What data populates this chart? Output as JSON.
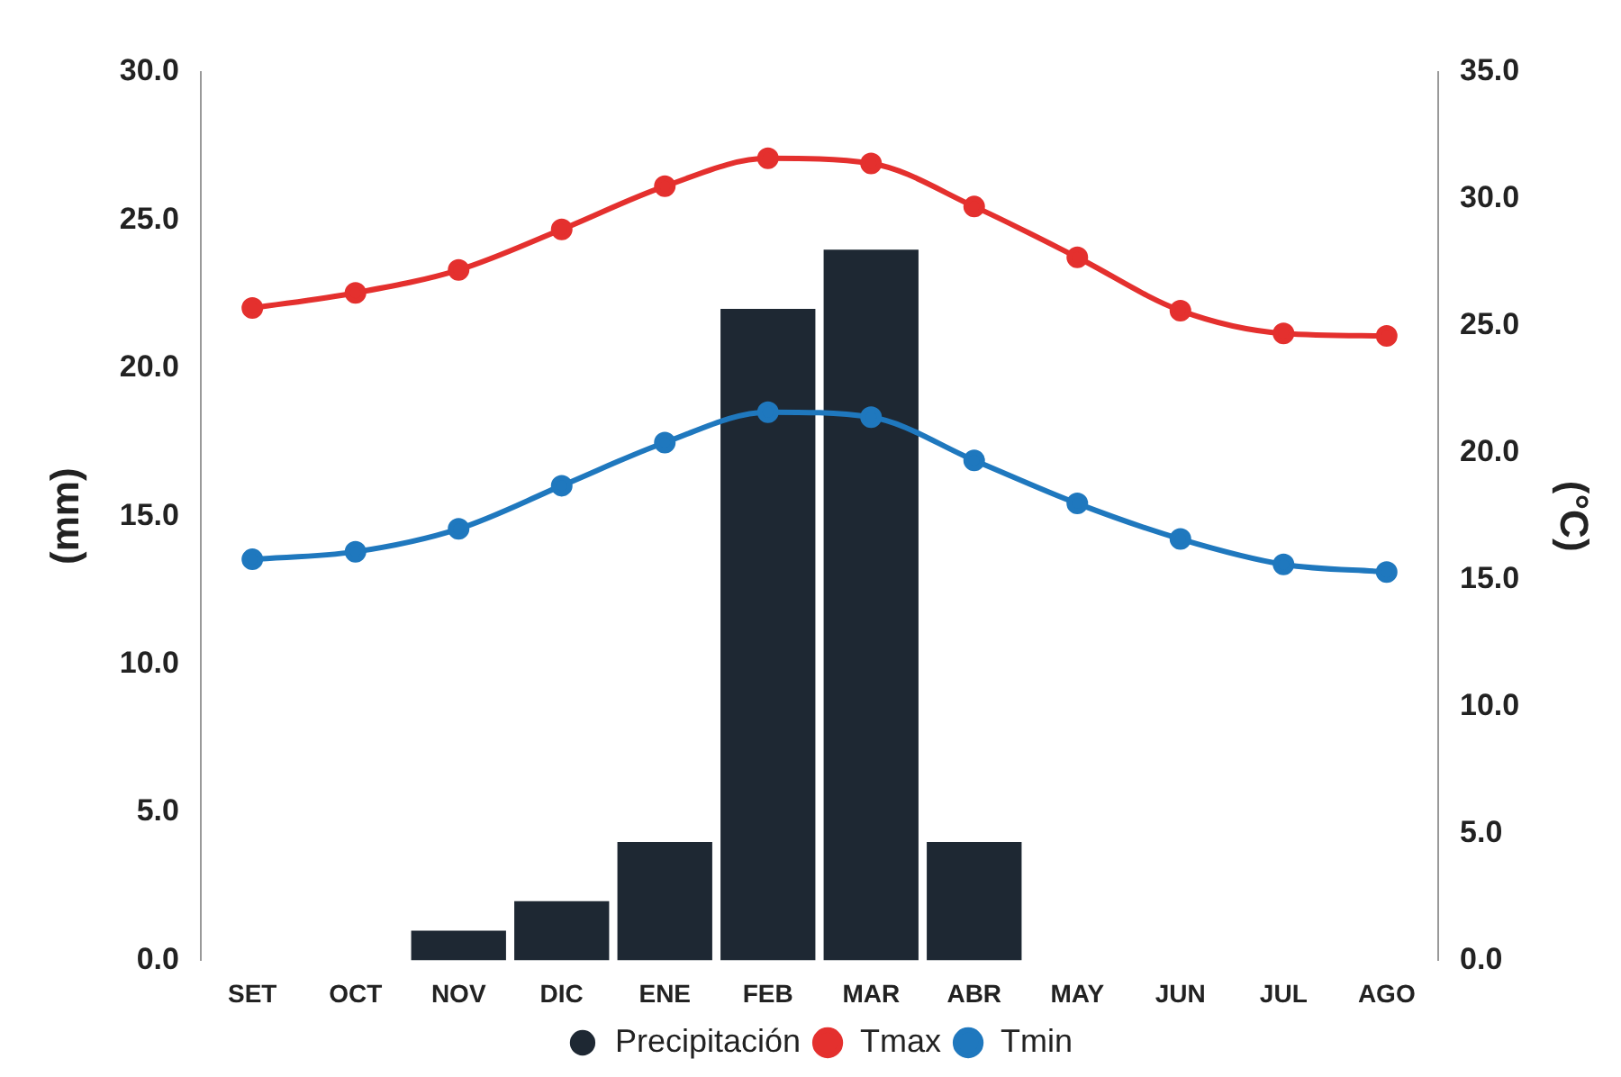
{
  "chart_data": {
    "type": "bar",
    "ylabel": "(mm)",
    "y2label": "(°C)",
    "categories": [
      "SET",
      "OCT",
      "NOV",
      "DIC",
      "ENE",
      "FEB",
      "MAR",
      "ABR",
      "MAY",
      "JUN",
      "JUL",
      "AGO"
    ],
    "series": [
      {
        "name": "Precipitación",
        "color": "#1e2833",
        "values": [
          0,
          0,
          1,
          2,
          4,
          22,
          24,
          4,
          0,
          0,
          0,
          0
        ]
      },
      {
        "name": "Tmax",
        "type": "line",
        "axis": "y2",
        "color": "#e4302e",
        "values": [
          25.7,
          26.3,
          27.2,
          28.8,
          30.5,
          31.6,
          31.4,
          29.7,
          27.7,
          25.6,
          24.7,
          24.6
        ]
      },
      {
        "name": "Tmin",
        "type": "line",
        "axis": "y2",
        "color": "#1f78be",
        "values": [
          15.8,
          16.1,
          17.0,
          18.7,
          20.4,
          21.6,
          21.4,
          19.7,
          18.0,
          16.6,
          15.6,
          15.3
        ]
      }
    ],
    "ylim": [
      0,
      30
    ],
    "yticks": [
      {
        "value": 0,
        "label": "0.0"
      },
      {
        "value": 5,
        "label": "5.0"
      },
      {
        "value": 10,
        "label": "10.0"
      },
      {
        "value": 15,
        "label": "15.0"
      },
      {
        "value": 20,
        "label": "20.0"
      },
      {
        "value": 25,
        "label": "25.0"
      },
      {
        "value": 30,
        "label": "30.0"
      }
    ],
    "y2lim": [
      0,
      35
    ],
    "y2ticks": [
      {
        "value": 0,
        "label": "0.0"
      },
      {
        "value": 5,
        "label": "5.0"
      },
      {
        "value": 10,
        "label": "10.0"
      },
      {
        "value": 15,
        "label": "15.0"
      },
      {
        "value": 20,
        "label": "20.0"
      },
      {
        "value": 25,
        "label": "25.0"
      },
      {
        "value": 30,
        "label": "30.0"
      },
      {
        "value": 35,
        "label": "35.0"
      }
    ],
    "grid": false,
    "legend": "bottom",
    "marker": "circle",
    "line_style": "solid"
  }
}
